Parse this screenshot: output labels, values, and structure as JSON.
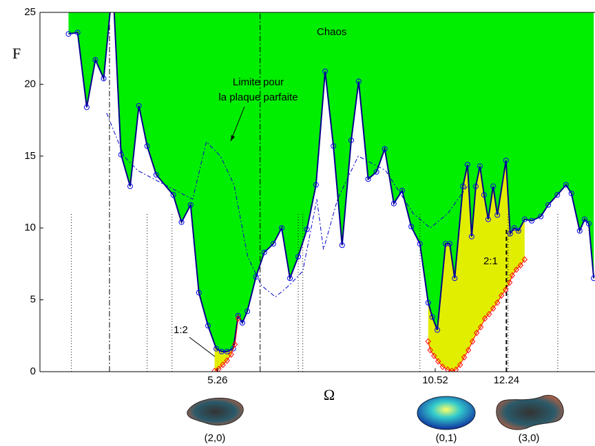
{
  "chart_data": {
    "type": "area",
    "ylabel": "F",
    "xlabel": "Ω",
    "xlim": [
      0.97,
      14.38
    ],
    "ylim": [
      0,
      25
    ],
    "xticks": [
      5.26,
      10.52,
      12.24
    ],
    "yticks": [
      0,
      5,
      10,
      15,
      20,
      25
    ],
    "series": [
      {
        "name": "Chaos",
        "color": "#00ee00",
        "line_color": "#00008b",
        "x": [
          1.66,
          1.88,
          2.1,
          2.31,
          2.51,
          2.73,
          2.93,
          3.15,
          3.36,
          3.56,
          3.78,
          4.19,
          4.39,
          4.61,
          4.81,
          5.03,
          5.23,
          5.36,
          5.49,
          5.64,
          5.76,
          5.86,
          5.98,
          6.19,
          6.39,
          6.61,
          6.81,
          7.01,
          7.21,
          7.42,
          7.64,
          7.86,
          8.06,
          8.27,
          8.49,
          8.67,
          8.9,
          9.1,
          9.3,
          9.52,
          9.72,
          9.94,
          10.15,
          10.35,
          10.45,
          10.57,
          10.77,
          10.87,
          10.99,
          11.19,
          11.3,
          11.4,
          11.5,
          11.6,
          11.7,
          11.8,
          11.92,
          12.02,
          12.23,
          12.33,
          12.43,
          12.53,
          12.68,
          12.85,
          13.07,
          13.25,
          13.47,
          13.68,
          13.81,
          14.01,
          14.13,
          14.23,
          14.35
        ],
        "values": [
          23.5,
          23.6,
          18.4,
          21.7,
          20.4,
          27,
          15.1,
          12.9,
          18.5,
          15.7,
          13.7,
          12.3,
          10.4,
          11.6,
          5.5,
          3.2,
          1.6,
          1.4,
          1.4,
          1.6,
          3.9,
          3.4,
          4.2,
          6.6,
          8.3,
          8.9,
          10.0,
          6.5,
          8.0,
          9.9,
          13.0,
          20.9,
          15.7,
          8.8,
          16.1,
          20.2,
          13.4,
          13.9,
          15.5,
          11.7,
          12.6,
          10.1,
          8.9,
          4.8,
          3.8,
          2.9,
          8.9,
          8.9,
          6.5,
          12.9,
          14.4,
          9.4,
          12.9,
          14.3,
          12.3,
          10.6,
          12.9,
          10.9,
          14.7,
          9.6,
          10.0,
          9.8,
          10.6,
          10.5,
          10.8,
          11.6,
          12.3,
          13.0,
          12.4,
          9.8,
          10.6,
          10.3,
          6.5
        ]
      },
      {
        "name": "1:2",
        "color": "#e2ee00",
        "line_color": "#ff0000",
        "x": [
          5.19,
          5.29,
          5.39,
          5.49,
          5.59,
          5.68,
          5.76
        ],
        "values": [
          0.05,
          0.19,
          0.48,
          0.77,
          1.2,
          1.9,
          3.7
        ]
      },
      {
        "name": "2:1",
        "color": "#e2ee00",
        "line_color": "#ff0000",
        "x": [
          10.35,
          10.4,
          10.49,
          10.59,
          10.7,
          10.82,
          10.92,
          11.02,
          11.12,
          11.22,
          11.32,
          11.42,
          11.52,
          11.62,
          11.72,
          11.82,
          11.92,
          12.02,
          12.12,
          12.22,
          12.32,
          12.38,
          12.48,
          12.58,
          12.68
        ],
        "values": [
          2.1,
          1.5,
          1.1,
          0.72,
          0.34,
          0.14,
          0.05,
          0.14,
          0.48,
          1.0,
          1.5,
          2.1,
          2.7,
          3.1,
          3.7,
          4.0,
          4.4,
          4.8,
          5.3,
          5.7,
          6.2,
          6.7,
          7.1,
          7.4,
          7.8
        ]
      }
    ],
    "limit": {
      "label": "Limite pour\nla plaque parfaite",
      "color": "#0000cc",
      "x": [
        2.58,
        3.0,
        3.33,
        3.99,
        4.66,
        4.99,
        5.33,
        5.66,
        5.99,
        6.32,
        6.66,
        6.99,
        7.32,
        7.66,
        7.82,
        8.16,
        8.66,
        9.32,
        9.99,
        10.4,
        10.82,
        11.32
      ],
      "values": [
        18,
        15,
        14,
        13,
        12,
        16,
        15,
        13,
        8,
        6,
        5.2,
        6,
        7,
        12,
        8.5,
        12,
        15,
        14,
        11,
        10,
        11,
        13
      ]
    },
    "vlines": {
      "dotted": [
        1.73,
        3.56,
        4.16,
        7.21,
        7.32,
        10.15,
        12.28,
        13.48
      ],
      "dashdot": [
        2.65,
        6.29
      ],
      "dashed": [
        12.24
      ]
    },
    "modes": [
      {
        "label": "(2,0)"
      },
      {
        "label": "(0,1)"
      },
      {
        "label": "(3,0)"
      }
    ]
  }
}
